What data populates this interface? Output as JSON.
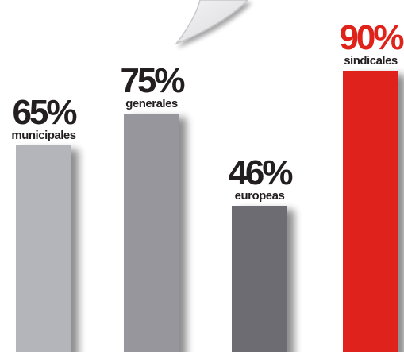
{
  "chart_data": {
    "type": "bar",
    "categories": [
      "municipales",
      "generales",
      "europeas",
      "sindicales"
    ],
    "values": [
      65,
      75,
      46,
      90
    ],
    "labels": [
      "65%",
      "75%",
      "46%",
      "90%"
    ],
    "colors": [
      "#b4b5ba",
      "#97969c",
      "#6d6c73",
      "#e0231a"
    ],
    "label_colors": [
      "#231f20",
      "#231f20",
      "#231f20",
      "#e0231a"
    ],
    "ylim": [
      0,
      100
    ],
    "grid": false,
    "legend": "none"
  }
}
